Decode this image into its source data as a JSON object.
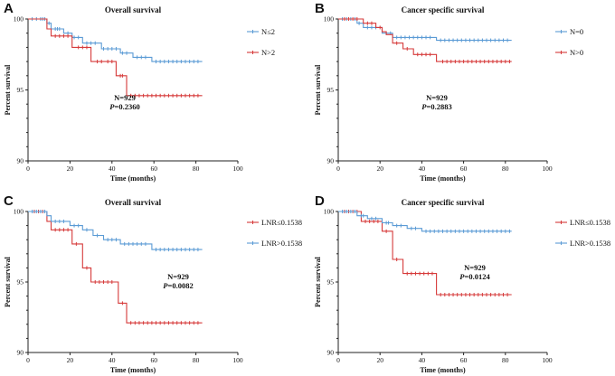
{
  "chart_data": [
    {
      "type": "line",
      "panel": "A",
      "title": "Overall survival",
      "xlabel": "Time (months)",
      "ylabel": "Percent survival",
      "xlim": [
        0,
        100
      ],
      "ylim": [
        90,
        100
      ],
      "xticks": [
        "0",
        "20",
        "40",
        "60",
        "80",
        "100"
      ],
      "yticks": [
        "90",
        "95",
        "100"
      ],
      "legend_position": "top-right",
      "annotation": {
        "n": "N=929",
        "p_label": "P",
        "p_value": "=0.2360"
      },
      "series": [
        {
          "name": "N≤2",
          "color": "#5b9bd5",
          "x_end": 83,
          "steps": [
            [
              0,
              100
            ],
            [
              9,
              99.7
            ],
            [
              11,
              99.3
            ],
            [
              17,
              99.0
            ],
            [
              21,
              98.7
            ],
            [
              26,
              98.3
            ],
            [
              35,
              97.9
            ],
            [
              44,
              97.6
            ],
            [
              50,
              97.3
            ],
            [
              59,
              97.0
            ]
          ],
          "censor_x": [
            2,
            4,
            6,
            7,
            8,
            10,
            13,
            14,
            15,
            19,
            22,
            24,
            28,
            30,
            32,
            36,
            38,
            40,
            42,
            45,
            47,
            52,
            54,
            56,
            61,
            63,
            65,
            67,
            69,
            71,
            73,
            75,
            77,
            79,
            81
          ]
        },
        {
          "name": "N>2",
          "color": "#d63a3a",
          "x_end": 83,
          "steps": [
            [
              0,
              100
            ],
            [
              9,
              99.3
            ],
            [
              11,
              98.8
            ],
            [
              21,
              98.0
            ],
            [
              30,
              97.0
            ],
            [
              42,
              96.0
            ],
            [
              47,
              94.6
            ]
          ],
          "censor_x": [
            13,
            15,
            17,
            19,
            24,
            26,
            28,
            33,
            35,
            38,
            40,
            44,
            45,
            49,
            51,
            53,
            55,
            57,
            59,
            61,
            63,
            65,
            67,
            69,
            71,
            73,
            75,
            77,
            79,
            81
          ]
        }
      ]
    },
    {
      "type": "line",
      "panel": "B",
      "title": "Cancer specific survival",
      "xlabel": "Time (months)",
      "ylabel": "Percent survival",
      "xlim": [
        0,
        100
      ],
      "ylim": [
        90,
        100
      ],
      "xticks": [
        "0",
        "20",
        "40",
        "60",
        "80",
        "100"
      ],
      "yticks": [
        "90",
        "95",
        "100"
      ],
      "legend_position": "top-right",
      "annotation": {
        "n": "N=929",
        "p_label": "P",
        "p_value": "=0.2883"
      },
      "series": [
        {
          "name": "N=0",
          "color": "#5b9bd5",
          "x_end": 83,
          "steps": [
            [
              0,
              100
            ],
            [
              9,
              99.7
            ],
            [
              12,
              99.4
            ],
            [
              21,
              99.0
            ],
            [
              26,
              98.7
            ],
            [
              47,
              98.5
            ]
          ],
          "censor_x": [
            2,
            4,
            6,
            8,
            10,
            14,
            16,
            18,
            23,
            25,
            28,
            30,
            32,
            34,
            36,
            38,
            40,
            42,
            44,
            49,
            51,
            53,
            55,
            57,
            59,
            61,
            63,
            65,
            67,
            69,
            71,
            73,
            75,
            77,
            79,
            81
          ]
        },
        {
          "name": "N>0",
          "color": "#d63a3a",
          "x_end": 83,
          "steps": [
            [
              0,
              100
            ],
            [
              12,
              99.7
            ],
            [
              18,
              99.4
            ],
            [
              21,
              99.1
            ],
            [
              23,
              98.9
            ],
            [
              26,
              98.3
            ],
            [
              31,
              97.9
            ],
            [
              36,
              97.5
            ],
            [
              47,
              97.0
            ]
          ],
          "censor_x": [
            3,
            5,
            7,
            9,
            14,
            16,
            20,
            28,
            33,
            38,
            40,
            42,
            44,
            50,
            52,
            54,
            56,
            58,
            60,
            62,
            64,
            66,
            68,
            70,
            72,
            74,
            76,
            78,
            80,
            82
          ]
        }
      ]
    },
    {
      "type": "line",
      "panel": "C",
      "title": "Overall survival",
      "xlabel": "Time (months)",
      "ylabel": "Percent survival",
      "xlim": [
        0,
        100
      ],
      "ylim": [
        90,
        100
      ],
      "xticks": [
        "0",
        "20",
        "40",
        "60",
        "80",
        "100"
      ],
      "yticks": [
        "90",
        "95",
        "100"
      ],
      "legend_position": "top-right",
      "annotation": {
        "n": "N=929",
        "p_label": "P",
        "p_value": "=0.0082"
      },
      "series": [
        {
          "name": "LNR≤0.1538",
          "color": "#d63a3a",
          "x_end": 83,
          "steps": [
            [
              0,
              100
            ],
            [
              9,
              99.3
            ],
            [
              11,
              98.7
            ],
            [
              21,
              97.7
            ],
            [
              26,
              96.0
            ],
            [
              30,
              95.0
            ],
            [
              43,
              93.5
            ],
            [
              47,
              92.1
            ]
          ],
          "censor_x": [
            3,
            5,
            7,
            13,
            15,
            17,
            19,
            23,
            28,
            32,
            34,
            36,
            38,
            40,
            45,
            49,
            51,
            53,
            55,
            57,
            59,
            61,
            63,
            65,
            67,
            69,
            71,
            73,
            75,
            77,
            79,
            81
          ]
        },
        {
          "name": "LNR>0.1538",
          "color": "#5b9bd5",
          "x_end": 83,
          "steps": [
            [
              0,
              100
            ],
            [
              9,
              99.7
            ],
            [
              11,
              99.3
            ],
            [
              20,
              99.0
            ],
            [
              26,
              98.7
            ],
            [
              31,
              98.3
            ],
            [
              36,
              98.0
            ],
            [
              44,
              97.7
            ],
            [
              59,
              97.3
            ]
          ],
          "censor_x": [
            2,
            4,
            6,
            8,
            13,
            15,
            17,
            22,
            24,
            28,
            33,
            38,
            40,
            42,
            46,
            48,
            50,
            52,
            54,
            56,
            61,
            63,
            65,
            67,
            69,
            71,
            73,
            75,
            77,
            79,
            81
          ]
        }
      ]
    },
    {
      "type": "line",
      "panel": "D",
      "title": "Cancer specific survival",
      "xlabel": "Time (months)",
      "ylabel": "Percent survival",
      "xlim": [
        0,
        100
      ],
      "ylim": [
        90,
        100
      ],
      "xticks": [
        "0",
        "20",
        "40",
        "60",
        "80",
        "100"
      ],
      "yticks": [
        "90",
        "95",
        "100"
      ],
      "legend_position": "top-right",
      "annotation": {
        "n": "N=929",
        "p_label": "P",
        "p_value": "=0.0124"
      },
      "series": [
        {
          "name": "LNR≤0.1538",
          "color": "#d63a3a",
          "x_end": 83,
          "steps": [
            [
              0,
              100
            ],
            [
              11,
              99.3
            ],
            [
              21,
              98.6
            ],
            [
              26,
              96.6
            ],
            [
              31,
              95.6
            ],
            [
              47,
              94.1
            ]
          ],
          "censor_x": [
            3,
            5,
            7,
            9,
            13,
            15,
            17,
            19,
            23,
            28,
            33,
            35,
            37,
            39,
            41,
            43,
            45,
            49,
            51,
            53,
            55,
            57,
            59,
            61,
            63,
            65,
            67,
            69,
            71,
            73,
            75,
            77,
            79,
            81
          ]
        },
        {
          "name": "LNR>0.1538",
          "color": "#5b9bd5",
          "x_end": 83,
          "steps": [
            [
              0,
              100
            ],
            [
              9,
              99.7
            ],
            [
              14,
              99.5
            ],
            [
              21,
              99.2
            ],
            [
              26,
              99.0
            ],
            [
              33,
              98.8
            ],
            [
              40,
              98.6
            ]
          ],
          "censor_x": [
            2,
            4,
            6,
            8,
            11,
            12,
            16,
            18,
            23,
            24,
            28,
            30,
            35,
            37,
            42,
            44,
            46,
            48,
            50,
            52,
            54,
            56,
            58,
            60,
            62,
            64,
            66,
            68,
            70,
            72,
            74,
            76,
            78,
            80,
            82
          ]
        }
      ]
    }
  ]
}
